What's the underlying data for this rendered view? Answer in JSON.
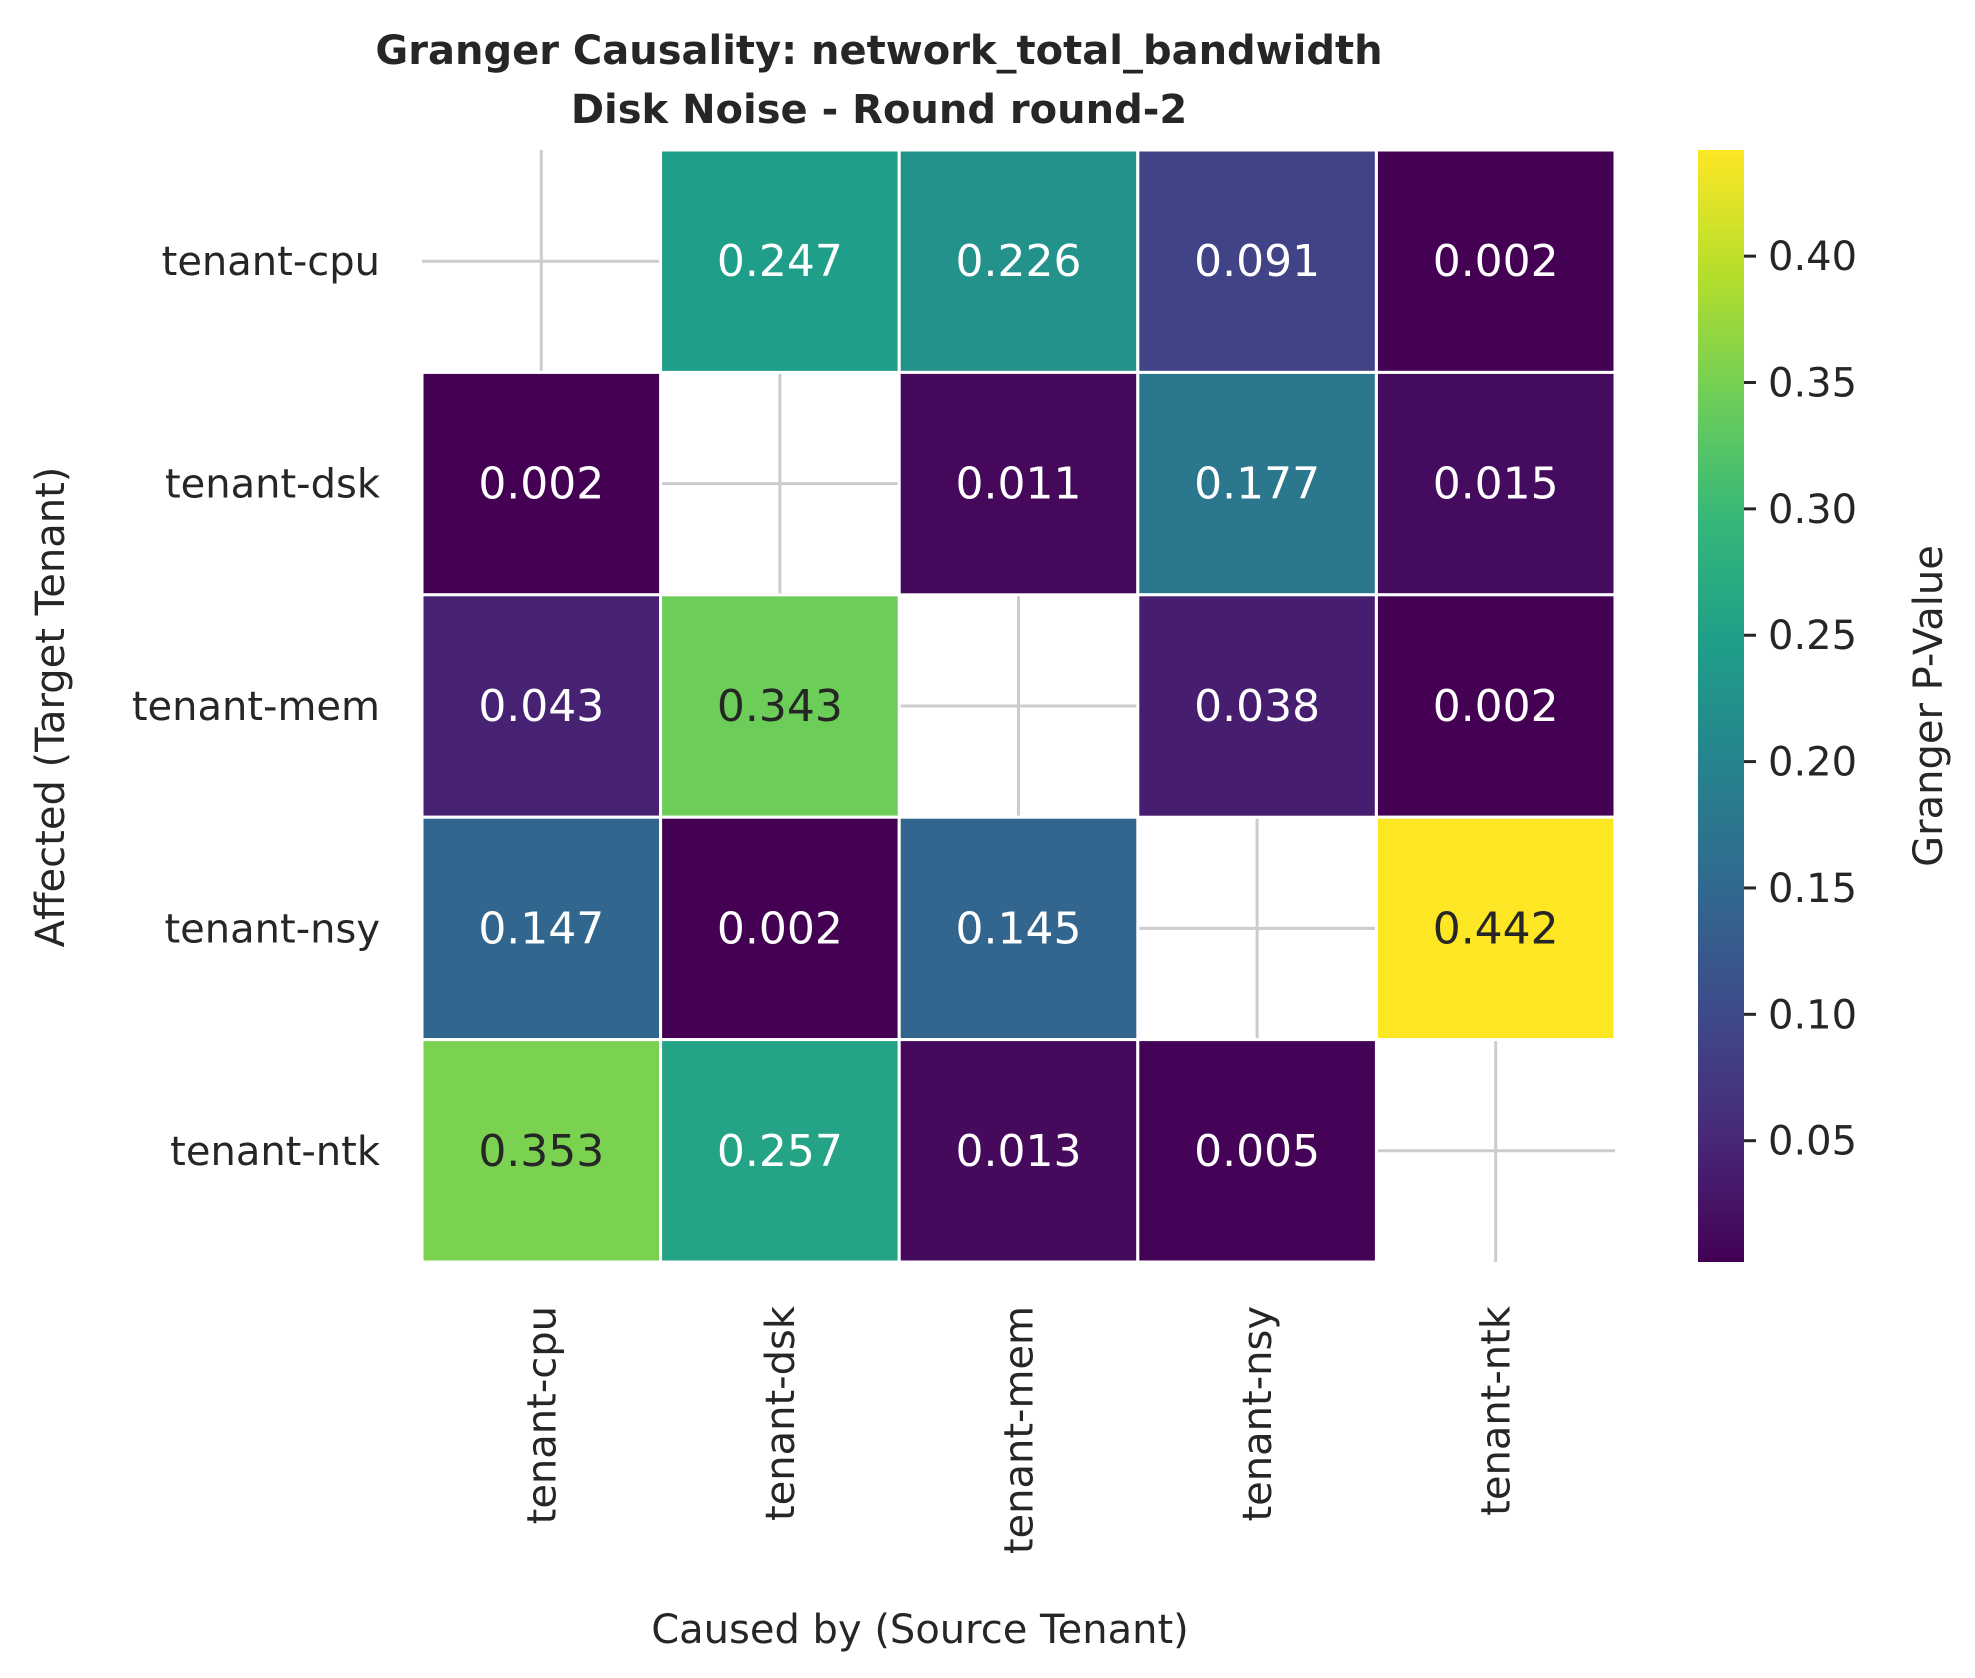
{
  "chart_data": {
    "type": "heatmap",
    "title_line1": "Granger Causality: network_total_bandwidth",
    "title_line2": "Disk Noise - Round round-2",
    "xlabel": "Caused by (Source Tenant)",
    "ylabel": "Affected (Target Tenant)",
    "x_categories": [
      "tenant-cpu",
      "tenant-dsk",
      "tenant-mem",
      "tenant-nsy",
      "tenant-ntk"
    ],
    "y_categories": [
      "tenant-cpu",
      "tenant-dsk",
      "tenant-mem",
      "tenant-nsy",
      "tenant-ntk"
    ],
    "values": [
      [
        null,
        0.247,
        0.226,
        0.091,
        0.002
      ],
      [
        0.002,
        null,
        0.011,
        0.177,
        0.015
      ],
      [
        0.043,
        0.343,
        null,
        0.038,
        0.002
      ],
      [
        0.147,
        0.002,
        0.145,
        null,
        0.442
      ],
      [
        0.353,
        0.257,
        0.013,
        0.005,
        null
      ]
    ],
    "value_labels": [
      [
        "",
        "0.247",
        "0.226",
        "0.091",
        "0.002"
      ],
      [
        "0.002",
        "",
        "0.011",
        "0.177",
        "0.015"
      ],
      [
        "0.043",
        "0.343",
        "",
        "0.038",
        "0.002"
      ],
      [
        "0.147",
        "0.002",
        "0.145",
        "",
        "0.442"
      ],
      [
        "0.353",
        "0.257",
        "0.013",
        "0.005",
        ""
      ]
    ],
    "colormap": "viridis",
    "vmin": 0.002,
    "vmax": 0.442,
    "colorbar": {
      "label": "Granger P-Value",
      "ticks": [
        0.05,
        0.1,
        0.15,
        0.2,
        0.25,
        0.3,
        0.35,
        0.4
      ],
      "tick_labels": [
        "0.05",
        "0.10",
        "0.15",
        "0.20",
        "0.25",
        "0.30",
        "0.35",
        "0.40"
      ]
    },
    "grid": true
  }
}
